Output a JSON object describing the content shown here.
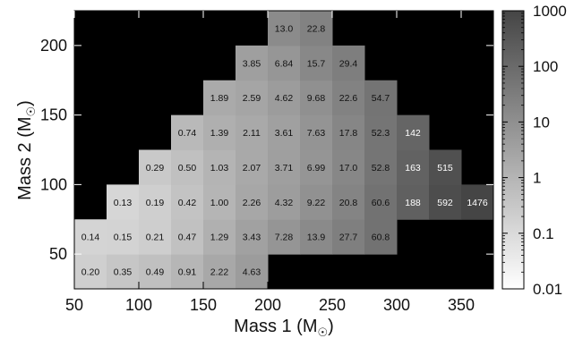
{
  "chart_data": {
    "type": "heatmap",
    "xlabel": "Mass 1 (M",
    "ylabel": "Mass 2 (M",
    "x_ticks": [
      "50",
      "100",
      "150",
      "200",
      "250",
      "300",
      "350"
    ],
    "y_ticks": [
      "50",
      "100",
      "150",
      "200"
    ],
    "colorbar": {
      "scale": "log",
      "range": [
        0.01,
        1000
      ],
      "ticks": [
        "0.01",
        "0.1",
        "1",
        "10",
        "100",
        "1000"
      ]
    },
    "background_color": "#000000",
    "x_bins": [
      50,
      75,
      100,
      125,
      150,
      175,
      200,
      225,
      250,
      275,
      300,
      325,
      350
    ],
    "y_bins": [
      25,
      50,
      75,
      100,
      125,
      150,
      175,
      200
    ],
    "rows": [
      [
        "0.20",
        "0.35",
        "0.49",
        "0.91",
        "2.22",
        "4.63",
        null,
        null,
        null,
        null,
        null,
        null,
        null
      ],
      [
        "0.14",
        "0.15",
        "0.21",
        "0.47",
        "1.29",
        "3.43",
        "7.28",
        "13.9",
        "27.7",
        "60.8",
        null,
        null,
        null
      ],
      [
        null,
        "0.13",
        "0.19",
        "0.42",
        "1.00",
        "2.26",
        "4.32",
        "9.22",
        "20.8",
        "60.6",
        "188",
        "592",
        "1476"
      ],
      [
        null,
        null,
        "0.29",
        "0.50",
        "1.03",
        "2.07",
        "3.71",
        "6.99",
        "17.0",
        "52.8",
        "163",
        "515",
        null
      ],
      [
        null,
        null,
        null,
        "0.74",
        "1.39",
        "2.11",
        "3.61",
        "7.63",
        "17.8",
        "52.3",
        "142",
        null,
        null
      ],
      [
        null,
        null,
        null,
        null,
        "1.89",
        "2.59",
        "4.62",
        "9.68",
        "22.6",
        "54.7",
        null,
        null,
        null
      ],
      [
        null,
        null,
        null,
        null,
        null,
        "3.85",
        "6.84",
        "15.7",
        "29.4",
        null,
        null,
        null,
        null
      ],
      [
        null,
        null,
        null,
        null,
        null,
        null,
        "13.0",
        "22.8",
        null,
        null,
        null,
        null,
        null
      ]
    ]
  }
}
